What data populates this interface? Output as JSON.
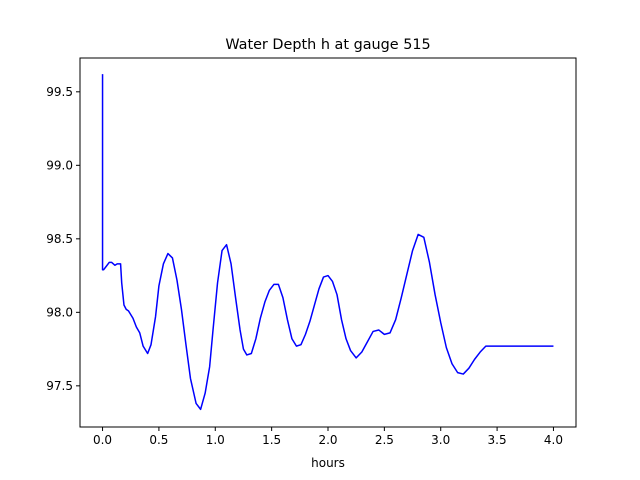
{
  "chart_data": {
    "type": "line",
    "title": "Water Depth h at gauge 515",
    "xlabel": "hours",
    "ylabel": "",
    "xlim": [
      -0.2,
      4.2
    ],
    "ylim": [
      97.22,
      99.73
    ],
    "xticks": [
      0.0,
      0.5,
      1.0,
      1.5,
      2.0,
      2.5,
      3.0,
      3.5,
      4.0
    ],
    "xtick_labels": [
      "0.0",
      "0.5",
      "1.0",
      "1.5",
      "2.0",
      "2.5",
      "3.0",
      "3.5",
      "4.0"
    ],
    "yticks": [
      97.5,
      98.0,
      98.5,
      99.0,
      99.5
    ],
    "ytick_labels": [
      "97.5",
      "98.0",
      "98.5",
      "99.0",
      "99.5"
    ],
    "grid": false,
    "series": [
      {
        "color": "#0000ff",
        "x": [
          0.0,
          0.0,
          0.01,
          0.03,
          0.06,
          0.08,
          0.11,
          0.13,
          0.16,
          0.17,
          0.19,
          0.21,
          0.23,
          0.27,
          0.3,
          0.33,
          0.36,
          0.4,
          0.43,
          0.47,
          0.5,
          0.54,
          0.58,
          0.62,
          0.66,
          0.7,
          0.74,
          0.78,
          0.83,
          0.87,
          0.91,
          0.95,
          0.98,
          1.02,
          1.06,
          1.1,
          1.14,
          1.18,
          1.22,
          1.25,
          1.28,
          1.32,
          1.36,
          1.4,
          1.44,
          1.48,
          1.52,
          1.56,
          1.6,
          1.64,
          1.68,
          1.72,
          1.76,
          1.8,
          1.84,
          1.88,
          1.92,
          1.96,
          2.0,
          2.04,
          2.08,
          2.12,
          2.16,
          2.2,
          2.25,
          2.3,
          2.35,
          2.4,
          2.45,
          2.5,
          2.55,
          2.6,
          2.65,
          2.7,
          2.75,
          2.8,
          2.85,
          2.9,
          2.95,
          3.0,
          3.05,
          3.1,
          3.15,
          3.2,
          3.25,
          3.3,
          3.35,
          3.4,
          3.45,
          3.5,
          3.55,
          3.6,
          3.65,
          3.7,
          3.75,
          3.8,
          3.85,
          3.9,
          3.95,
          4.0
        ],
        "values": [
          99.62,
          98.29,
          98.29,
          98.31,
          98.34,
          98.34,
          98.32,
          98.33,
          98.33,
          98.2,
          98.05,
          98.02,
          98.01,
          97.96,
          97.9,
          97.86,
          97.77,
          97.72,
          97.78,
          97.97,
          98.18,
          98.33,
          98.4,
          98.37,
          98.22,
          98.02,
          97.78,
          97.55,
          97.38,
          97.34,
          97.45,
          97.63,
          97.88,
          98.2,
          98.42,
          98.46,
          98.33,
          98.1,
          97.88,
          97.75,
          97.71,
          97.72,
          97.82,
          97.96,
          98.07,
          98.15,
          98.19,
          98.19,
          98.1,
          97.95,
          97.82,
          97.77,
          97.78,
          97.85,
          97.94,
          98.05,
          98.16,
          98.24,
          98.25,
          98.21,
          98.12,
          97.95,
          97.82,
          97.74,
          97.69,
          97.73,
          97.8,
          97.87,
          97.88,
          97.85,
          97.86,
          97.95,
          98.1,
          98.26,
          98.42,
          98.53,
          98.51,
          98.34,
          98.12,
          97.93,
          97.76,
          97.65,
          97.59,
          97.58,
          97.62,
          97.68,
          97.73,
          97.77,
          97.77,
          97.77,
          97.77,
          97.77,
          97.77,
          97.77,
          97.77,
          97.77,
          97.77,
          97.77,
          97.77,
          97.77
        ]
      }
    ]
  }
}
